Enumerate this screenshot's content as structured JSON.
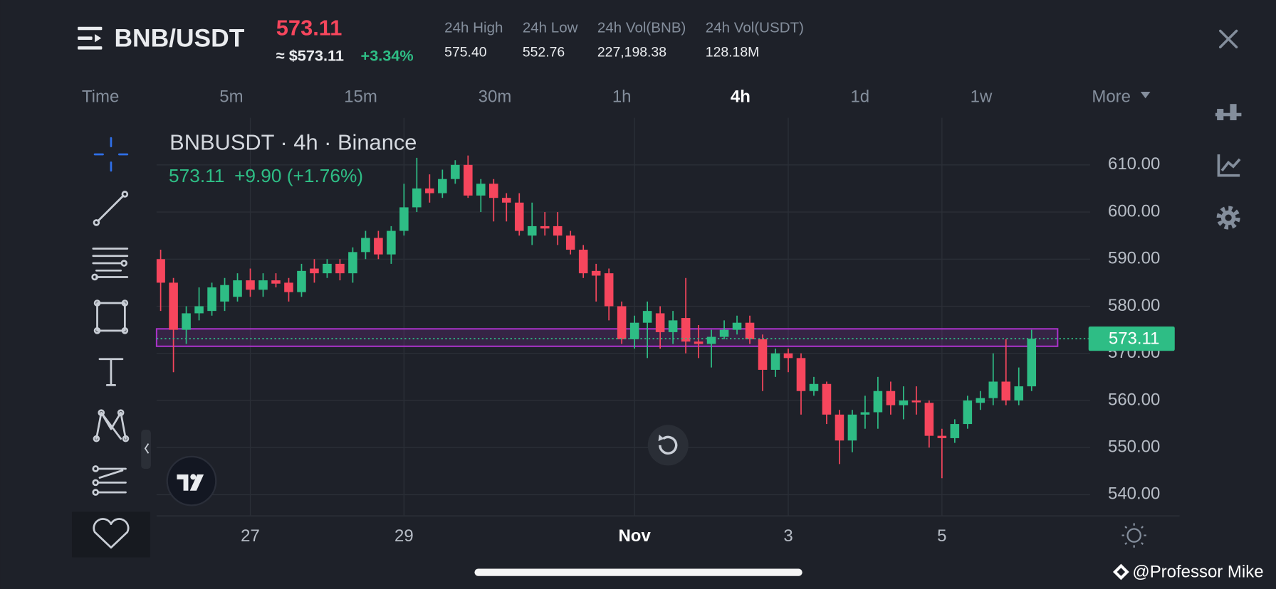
{
  "header": {
    "symbol": "BNB/USDT",
    "price": "573.11",
    "price_usd": "≈ $573.11",
    "change": "+3.34%",
    "stats": [
      {
        "label": "24h High",
        "value": "575.40"
      },
      {
        "label": "24h Low",
        "value": "552.76"
      },
      {
        "label": "24h Vol(BNB)",
        "value": "227,198.38"
      },
      {
        "label": "24h Vol(USDT)",
        "value": "128.18M"
      }
    ]
  },
  "intervals": [
    {
      "label": "Time",
      "selected": false
    },
    {
      "label": "5m",
      "selected": false
    },
    {
      "label": "15m",
      "selected": false
    },
    {
      "label": "30m",
      "selected": false
    },
    {
      "label": "1h",
      "selected": false
    },
    {
      "label": "4h",
      "selected": true
    },
    {
      "label": "1d",
      "selected": false
    },
    {
      "label": "1w",
      "selected": false
    },
    {
      "label": "More",
      "selected": false
    }
  ],
  "chart_data": {
    "type": "candlestick",
    "title": "BNBUSDT · 4h · Binance",
    "legend_price": "573.11",
    "legend_change": "+9.90 (+1.76%)",
    "up_color": "#2ebd85",
    "down_color": "#f6465d",
    "categories": [
      null,
      null,
      null,
      null,
      null,
      null,
      null,
      null,
      null,
      null,
      null,
      null,
      null,
      null,
      null,
      null,
      null,
      null,
      null,
      null,
      null,
      null,
      null,
      null,
      null,
      null,
      null,
      null,
      null,
      null,
      null,
      null,
      null,
      null,
      null,
      null,
      null,
      null,
      null,
      null,
      null,
      null,
      null,
      null,
      null,
      null,
      null,
      null,
      null,
      null,
      null,
      null,
      null,
      null,
      null,
      null,
      null,
      null,
      null,
      null,
      null,
      null,
      null,
      null,
      null,
      null,
      null,
      null,
      null
    ],
    "open": [
      590,
      585,
      575,
      578.5,
      579,
      581,
      582,
      585.5,
      583.5,
      585.5,
      585,
      583,
      588,
      587,
      589,
      587,
      591.5,
      594.5,
      591,
      596,
      601,
      605,
      604,
      607,
      610,
      603.5,
      606,
      603,
      602,
      595,
      597,
      597,
      595,
      592,
      587.5,
      587,
      580,
      573,
      576.5,
      578.5,
      574.5,
      577.5,
      572.5,
      572,
      573.5,
      575,
      576.5,
      573,
      566.5,
      570,
      569,
      562,
      563.5,
      557,
      551.5,
      557,
      557.5,
      562,
      559,
      560,
      559.5,
      552.5,
      552,
      555,
      559.5,
      560.5,
      564,
      560,
      563
    ],
    "high": [
      592,
      586,
      580,
      584,
      585,
      586,
      587,
      588,
      587,
      587,
      586,
      589,
      590,
      590,
      590,
      592.5,
      596,
      596,
      597,
      606,
      611.5,
      608,
      609,
      611,
      612,
      607,
      607,
      604,
      604,
      602,
      600,
      600,
      596,
      593,
      589,
      588,
      581,
      578,
      581,
      580,
      579,
      586,
      576,
      575,
      577,
      578,
      578,
      574,
      571,
      571,
      570,
      565,
      564,
      558,
      558,
      561,
      565,
      564,
      563,
      563,
      560,
      554,
      556,
      561,
      562,
      570,
      573,
      567,
      575
    ],
    "low": [
      579,
      566,
      572,
      577,
      578,
      579,
      581,
      582,
      582,
      584,
      581,
      582,
      585,
      586,
      585.5,
      585,
      590,
      590,
      589,
      595,
      600,
      602,
      603,
      606,
      603,
      600,
      598,
      598,
      595,
      593,
      595,
      593,
      591,
      586,
      581,
      577,
      572,
      571,
      569,
      571,
      572,
      570,
      569,
      567,
      573,
      574,
      572,
      562,
      565,
      566,
      557,
      561,
      555,
      546.5,
      549,
      554,
      554,
      557,
      556,
      557,
      550,
      543.5,
      551,
      554,
      558,
      559,
      559,
      559,
      562
    ],
    "close": [
      585,
      575,
      578.5,
      580,
      584,
      584.5,
      585.5,
      583.5,
      585.5,
      584.8,
      583,
      587.5,
      587,
      589,
      587,
      591.5,
      594.5,
      591,
      596,
      601,
      605,
      604,
      607,
      610,
      603.5,
      606,
      603,
      602,
      596,
      597,
      596.5,
      595,
      592,
      587,
      586.5,
      580,
      573,
      576.5,
      579,
      574.5,
      577,
      572.5,
      572,
      573.5,
      575,
      576.5,
      573,
      566.5,
      570,
      569,
      562,
      563.5,
      557,
      551.5,
      557,
      557.5,
      562,
      559,
      560,
      559.6,
      552.5,
      552,
      555,
      560,
      560.5,
      564,
      560,
      563,
      573.11
    ],
    "ylim": [
      535.5,
      620
    ],
    "yticks": [
      {
        "value": 540,
        "label": "540.00"
      },
      {
        "value": 550,
        "label": "550.00"
      },
      {
        "value": 560,
        "label": "560.00"
      },
      {
        "value": 570,
        "label": "570.00"
      },
      {
        "value": 580,
        "label": "580.00"
      },
      {
        "value": 590,
        "label": "590.00"
      },
      {
        "value": 600,
        "label": "600.00"
      },
      {
        "value": 610,
        "label": "610.00"
      }
    ],
    "xticks": [
      {
        "value": 7,
        "label": "27",
        "bold": false
      },
      {
        "value": 19,
        "label": "29",
        "bold": false
      },
      {
        "value": 37,
        "label": "Nov",
        "bold": true
      },
      {
        "value": 49,
        "label": "3",
        "bold": false
      },
      {
        "value": 61,
        "label": "5",
        "bold": false
      }
    ],
    "grid": true,
    "last_price": 573.11,
    "highlight_band": {
      "low": 571.5,
      "high": 575.2,
      "color": "#a933c8"
    }
  },
  "watermark": "@Professor Mike"
}
